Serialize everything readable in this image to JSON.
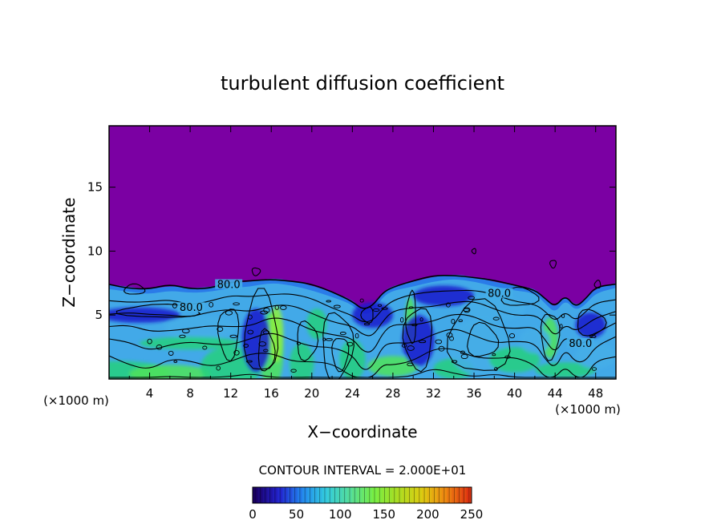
{
  "chart_data": {
    "type": "heatmap",
    "title": "turbulent diffusion coefficient",
    "xlabel": "X−coordinate",
    "ylabel": "Z−coordinate",
    "x_unit_left": "(×1000 m)",
    "x_unit_right": "(×1000 m)",
    "xlim": [
      0,
      50
    ],
    "ylim": [
      0,
      19.8
    ],
    "x_ticks": [
      4,
      8,
      12,
      16,
      20,
      24,
      28,
      32,
      36,
      40,
      44,
      48
    ],
    "y_ticks": [
      5,
      10,
      15
    ],
    "contour_interval_text": "CONTOUR INTERVAL = 2.000E+01",
    "contour_labels": [
      {
        "text": "80.0",
        "x": 8.1,
        "z": 5.5
      },
      {
        "text": "80.0",
        "x": 11.8,
        "z": 7.3
      },
      {
        "text": "80.0",
        "x": 38.5,
        "z": 6.6
      },
      {
        "text": "80.0",
        "x": 46.5,
        "z": 2.7
      }
    ],
    "colorbar": {
      "min": 0,
      "max": 250,
      "tick_values": [
        0,
        50,
        100,
        150,
        200,
        250
      ],
      "tick_labels": [
        "0",
        "50",
        "100",
        "150",
        "200",
        "250"
      ],
      "colors": [
        "#1a0066",
        "#2222cc",
        "#2288ee",
        "#33ccdd",
        "#55dd99",
        "#77ee44",
        "#aadd22",
        "#ddcc11",
        "#ee8811",
        "#dd3311"
      ]
    },
    "field": {
      "background_value": 0,
      "background_color": "#7b00a3",
      "boundary_layer_top_z": [
        [
          0,
          7.4
        ],
        [
          2,
          7.2
        ],
        [
          4,
          7.0
        ],
        [
          6,
          7.3
        ],
        [
          8,
          7.1
        ],
        [
          10,
          7.2
        ],
        [
          12,
          7.5
        ],
        [
          14,
          7.6
        ],
        [
          16,
          7.9
        ],
        [
          18,
          7.7
        ],
        [
          20,
          7.3
        ],
        [
          22,
          6.8
        ],
        [
          24,
          6.2
        ],
        [
          25,
          5.4
        ],
        [
          26,
          5.6
        ],
        [
          27,
          6.8
        ],
        [
          28,
          7.3
        ],
        [
          30,
          7.6
        ],
        [
          32,
          8.0
        ],
        [
          34,
          8.2
        ],
        [
          36,
          8.0
        ],
        [
          38,
          7.6
        ],
        [
          40,
          7.3
        ],
        [
          42,
          7.1
        ],
        [
          43,
          6.3
        ],
        [
          44,
          5.5
        ],
        [
          45,
          6.6
        ],
        [
          46,
          5.7
        ],
        [
          47,
          6.2
        ],
        [
          48,
          7.1
        ],
        [
          50,
          7.5
        ]
      ],
      "colors": {
        "low": "#1a1acc",
        "mid_low": "#2a7be8",
        "mid": "#45aee8",
        "high": "#26d07e",
        "higher": "#50e45a",
        "peak": "#8ef040"
      }
    }
  }
}
